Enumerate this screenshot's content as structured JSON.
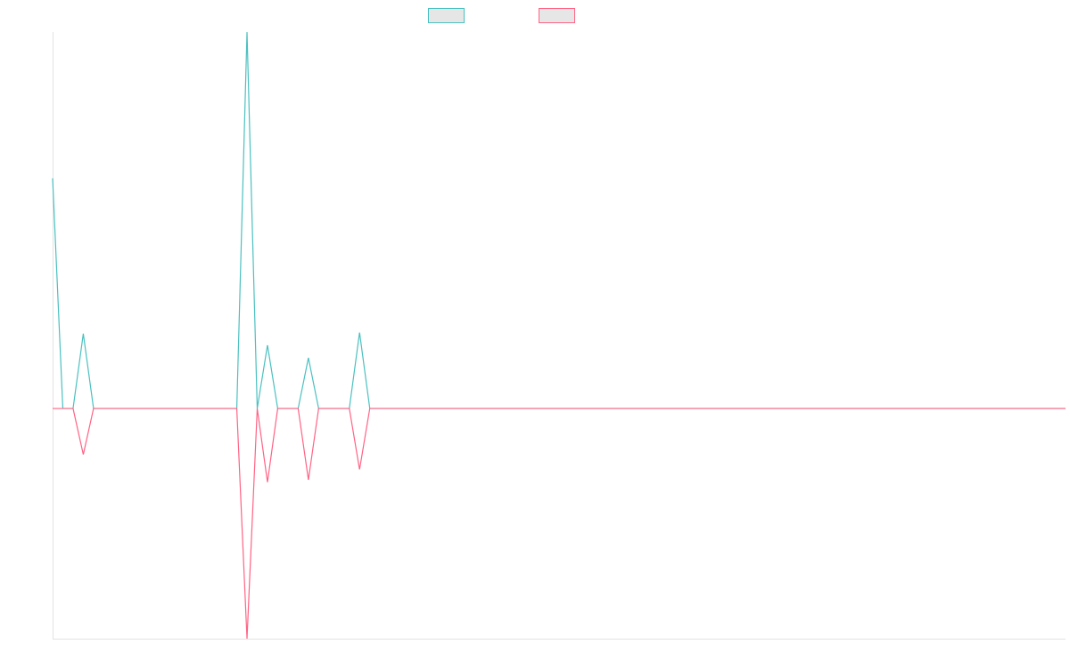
{
  "chart_data": {
    "type": "line",
    "title": "",
    "xlabel": "",
    "ylabel": "",
    "legend_position": "top-center",
    "grid": false,
    "x_count": 100,
    "ylim": [
      -1000,
      1635
    ],
    "series": [
      {
        "legend_label": "",
        "color": "#4bc0c0",
        "fill": "#e6e6e6",
        "points": [
          [
            0,
            1000
          ],
          [
            1,
            0
          ],
          [
            2,
            0
          ],
          [
            3,
            325
          ],
          [
            4,
            0
          ],
          [
            5,
            0
          ],
          [
            18,
            0
          ],
          [
            19,
            1635
          ],
          [
            20,
            0
          ],
          [
            21,
            275
          ],
          [
            22,
            0
          ],
          [
            24,
            0
          ],
          [
            25,
            220
          ],
          [
            26,
            0
          ],
          [
            29,
            0
          ],
          [
            30,
            330
          ],
          [
            31,
            0
          ],
          [
            99,
            0
          ]
        ]
      },
      {
        "legend_label": "",
        "color": "#ff6384",
        "fill": "#e6e6e6",
        "points": [
          [
            0,
            0
          ],
          [
            2,
            0
          ],
          [
            3,
            -200
          ],
          [
            4,
            0
          ],
          [
            18,
            0
          ],
          [
            19,
            -1000
          ],
          [
            20,
            0
          ],
          [
            21,
            -320
          ],
          [
            22,
            0
          ],
          [
            24,
            0
          ],
          [
            25,
            -310
          ],
          [
            26,
            0
          ],
          [
            29,
            0
          ],
          [
            30,
            -265
          ],
          [
            31,
            0
          ],
          [
            99,
            0
          ]
        ]
      }
    ]
  }
}
